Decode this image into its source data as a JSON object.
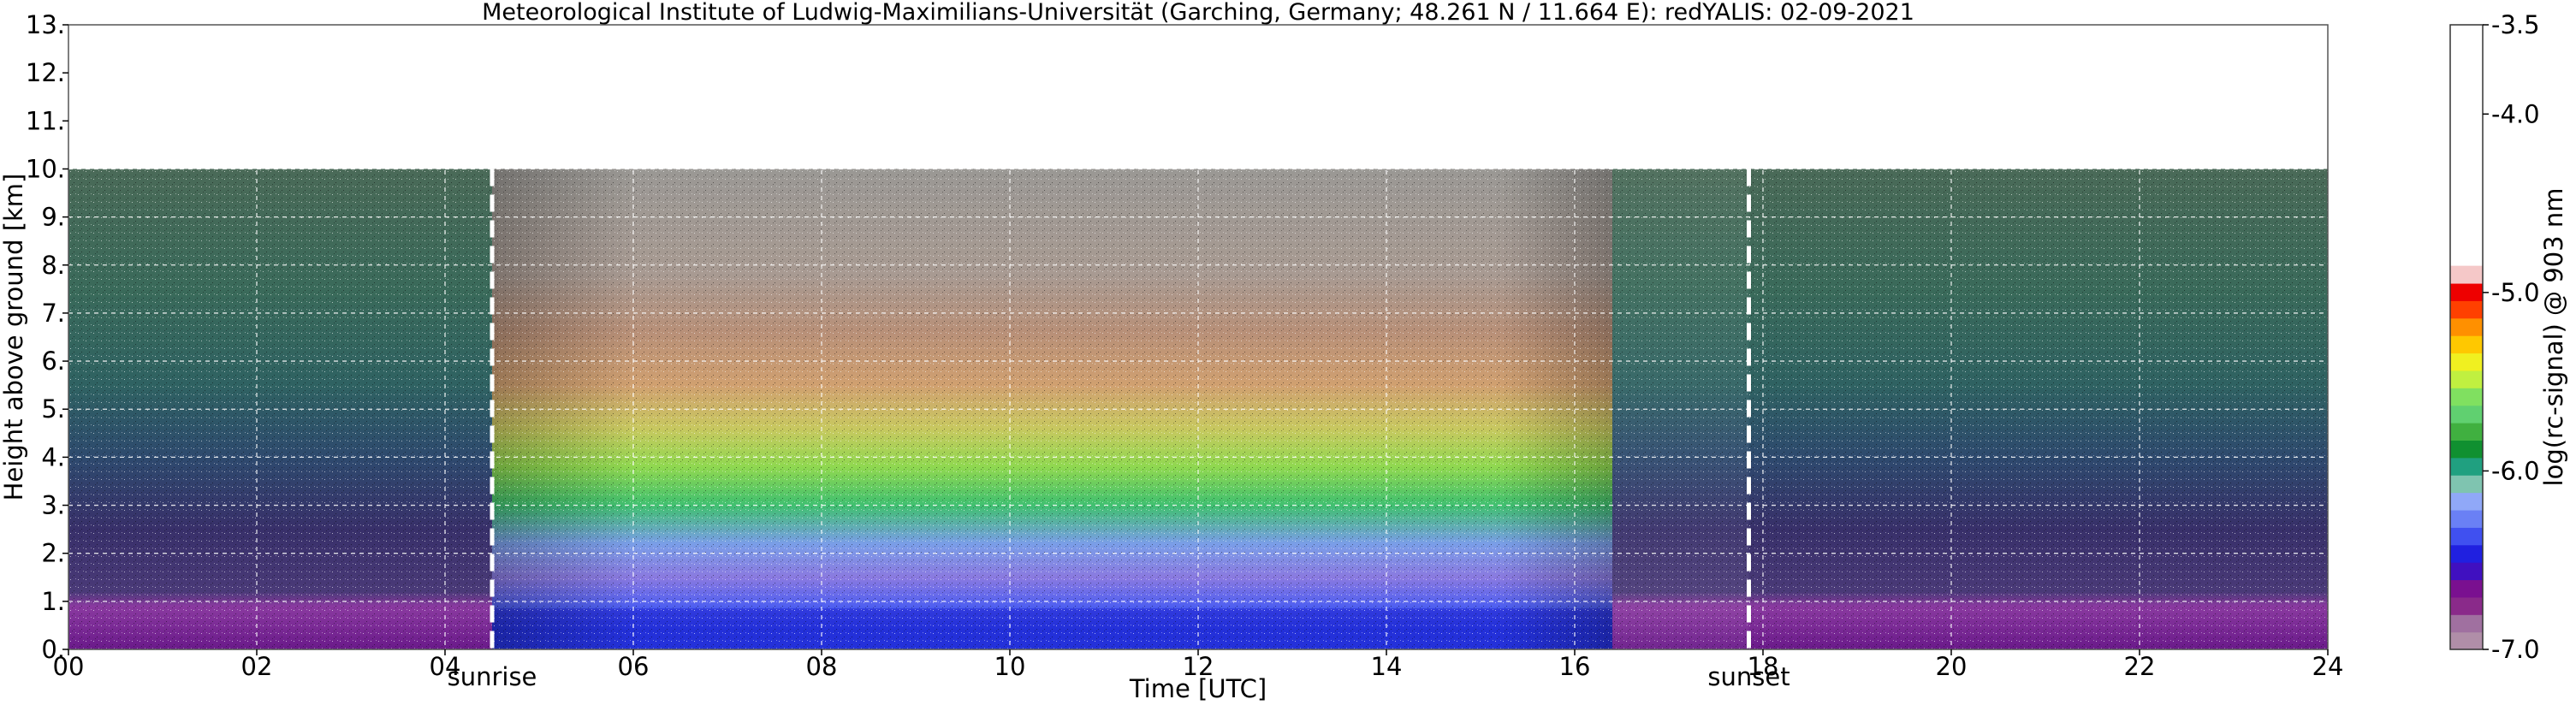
{
  "chart_data": {
    "type": "heatmap",
    "title": "Meteorological Institute of Ludwig-Maximilians-Universität (Garching, Germany; 48.261 N / 11.664 E):    redYALIS: 02-09-2021",
    "xlabel": "Time [UTC]",
    "ylabel": "Height above ground [km]",
    "xlim": [
      0,
      24
    ],
    "ylim": [
      0,
      13
    ],
    "x_ticks": [
      0,
      2,
      4,
      6,
      8,
      10,
      12,
      14,
      16,
      18,
      20,
      22,
      24
    ],
    "x_tick_labels": [
      "00",
      "02",
      "04",
      "06",
      "08",
      "10",
      "12",
      "14",
      "16",
      "18",
      "20",
      "22",
      "24"
    ],
    "y_ticks": [
      0,
      1,
      2,
      3,
      4,
      5,
      6,
      7,
      8,
      9,
      10,
      11,
      12,
      13
    ],
    "y_tick_labels": [
      "0.",
      "1.",
      "2.",
      "3.",
      "4.",
      "5.",
      "6.",
      "7.",
      "8.",
      "9.",
      "10.",
      "11.",
      "12.",
      "13."
    ],
    "grid": true,
    "data_max_height_km": 10,
    "events": [
      {
        "label": "sunrise",
        "time_utc": 4.5
      },
      {
        "label": "sunset",
        "time_utc": 17.85
      }
    ],
    "colorbar": {
      "label": "log(rc-signal) @ 903 nm",
      "range": [
        -7.0,
        -3.5
      ],
      "ticks": [
        -7.0,
        -6.0,
        -5.0,
        -4.0,
        -3.5
      ],
      "tick_labels": [
        "-7.0",
        "-6.0",
        "-5.0",
        "-4.0",
        "-3.5"
      ],
      "colors": [
        "#b08ea8",
        "#a070a0",
        "#8a2a8a",
        "#7a1090",
        "#4010c0",
        "#2020e0",
        "#4050f0",
        "#6a80f5",
        "#90a8f8",
        "#7fc4b0",
        "#20a080",
        "#109030",
        "#40b040",
        "#60d070",
        "#80e060",
        "#c0f040",
        "#f0f020",
        "#ffc800",
        "#ff9000",
        "#ff4000",
        "#ee0000",
        "#f5c8c8",
        "#ffffff"
      ]
    }
  },
  "colors": {
    "background": "#ffffff",
    "grid": "#ffffff",
    "event_line": "#ffffff",
    "blank_region": "#ffffff"
  }
}
